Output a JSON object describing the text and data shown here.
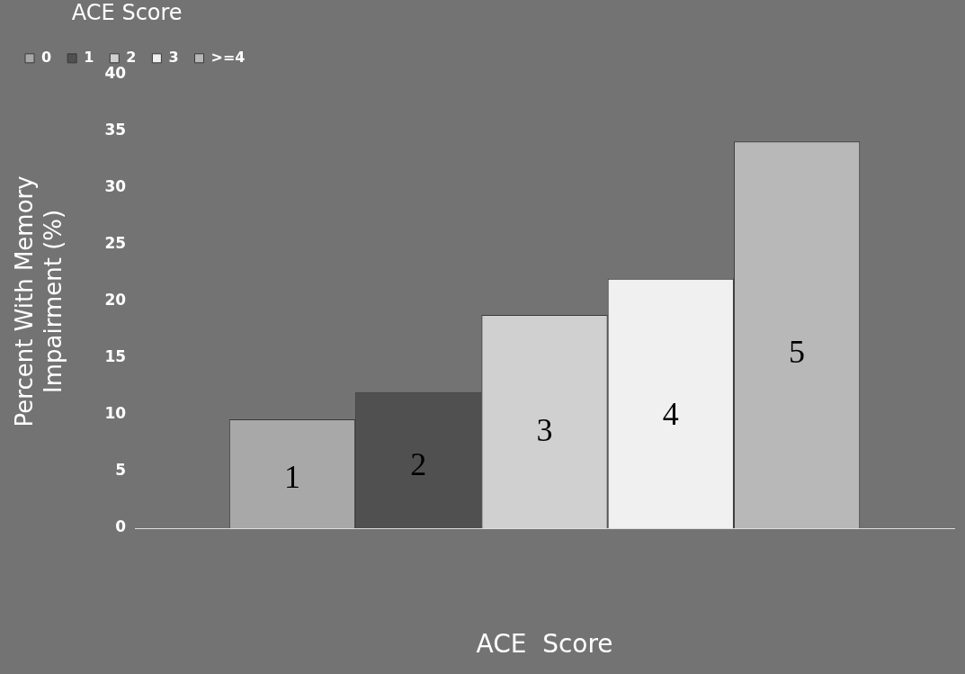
{
  "chart_data": {
    "type": "bar",
    "xlabel": "ACE  Score",
    "ylabel": "Percent With Memory Impairment (%)",
    "legend_title": "ACE Score",
    "categories": [
      null
    ],
    "series": [
      {
        "name": "0",
        "color": "#a8a8a8",
        "values": [
          9.6
        ]
      },
      {
        "name": "1",
        "color": "#505050",
        "values": [
          12
        ]
      },
      {
        "name": "2",
        "color": "#d0d0d0",
        "values": [
          18.8
        ]
      },
      {
        "name": "3",
        "color": "#f0f0f0",
        "values": [
          22
        ]
      },
      {
        "name": ">=4",
        "color": "#b8b8b8",
        "values": [
          34.1
        ]
      }
    ],
    "annotations": [
      "1",
      "2",
      "3",
      "4",
      "5"
    ],
    "ylim": [
      0,
      40
    ],
    "yticks": [
      0,
      5,
      10,
      15,
      20,
      25,
      30,
      35,
      40
    ],
    "grid": false,
    "legend": "top left"
  }
}
